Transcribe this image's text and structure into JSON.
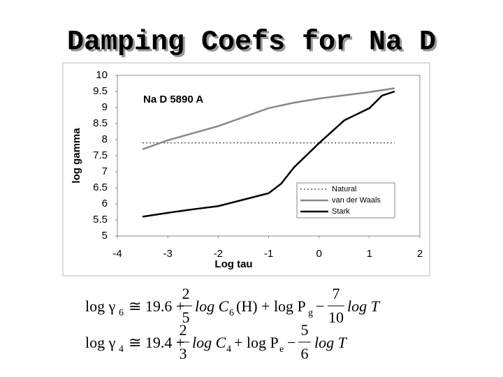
{
  "header": {
    "title": "Damping Coefs for Na D"
  },
  "chart_data": {
    "type": "line",
    "annotation": "Na D 5890 A",
    "x_label": "Log tau",
    "y_label": "log gamma",
    "xlim": [
      -4,
      2
    ],
    "xticks": [
      -4,
      -3,
      -2,
      -1,
      0,
      1,
      2
    ],
    "ylim": [
      5,
      10
    ],
    "yticks": [
      5,
      5.5,
      6,
      6.5,
      7,
      7.5,
      8,
      8.5,
      9,
      9.5,
      10
    ],
    "legend": "lower right",
    "series": [
      {
        "name": "Natural",
        "color": "#555555",
        "dash": "dotted",
        "x": [
          -3.5,
          1.5
        ],
        "values": [
          7.9,
          7.9
        ]
      },
      {
        "name": "van der Waals",
        "color": "#888888",
        "dash": "solid",
        "x": [
          -3.5,
          -3,
          -2.5,
          -2,
          -1.5,
          -1,
          -0.5,
          0,
          0.5,
          1,
          1.5
        ],
        "values": [
          7.7,
          7.98,
          8.2,
          8.42,
          8.7,
          8.98,
          9.15,
          9.28,
          9.38,
          9.48,
          9.6
        ]
      },
      {
        "name": "Stark",
        "color": "#000000",
        "dash": "solid",
        "x": [
          -3.5,
          -3,
          -2.5,
          -2,
          -1.5,
          -1,
          -0.75,
          -0.5,
          0,
          0.5,
          1,
          1.25,
          1.5
        ],
        "values": [
          5.6,
          5.72,
          5.83,
          5.93,
          6.13,
          6.33,
          6.63,
          7.13,
          7.89,
          8.6,
          8.98,
          9.37,
          9.5
        ]
      }
    ]
  },
  "equations": [
    {
      "lhs": "log γ",
      "lhs_sub": "6",
      "const": "≅ 19.6 +",
      "frac1": [
        "2",
        "5"
      ],
      "term": "log C",
      "term_sub": "6",
      "mid": "(H) + log P",
      "mid_sub": "g",
      "minus": "−",
      "frac2": [
        "7",
        "10"
      ],
      "end": "log T"
    },
    {
      "lhs": "log γ",
      "lhs_sub": "4",
      "const": "≅ 19.4 +",
      "frac1": [
        "2",
        "3"
      ],
      "term": "log C",
      "term_sub": "4",
      "mid": "+ log P",
      "mid_sub": "e",
      "minus": "−",
      "frac2": [
        "5",
        "6"
      ],
      "end": "log T"
    }
  ]
}
